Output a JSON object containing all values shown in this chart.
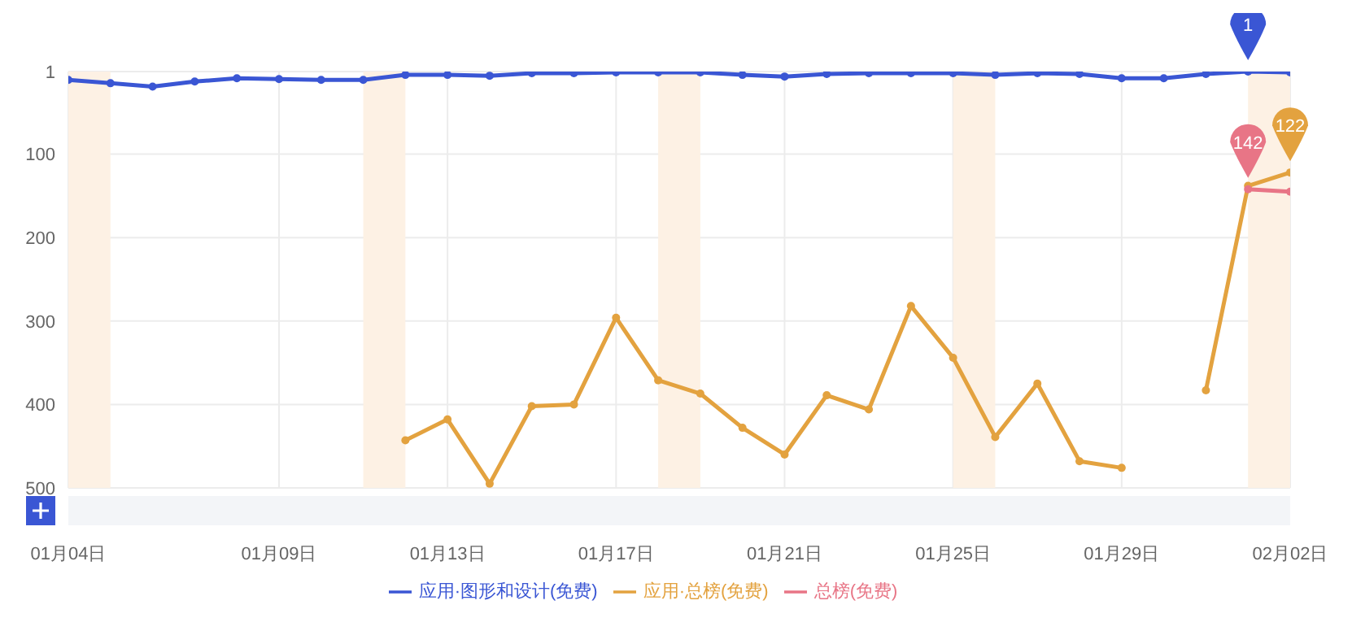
{
  "chart_data": {
    "type": "line",
    "x": [
      "--01-04",
      "--01-05",
      "--01-06",
      "--01-07",
      "--01-08",
      "--01-09",
      "--01-10",
      "--01-11",
      "--01-12",
      "--01-13",
      "--01-14",
      "--01-15",
      "--01-16",
      "--01-17",
      "--01-18",
      "--01-19",
      "--01-20",
      "--01-21",
      "--01-22",
      "--01-23",
      "--01-24",
      "--01-25",
      "--01-26",
      "--01-27",
      "--01-28",
      "--01-29",
      "--01-30",
      "--01-31",
      "--02-01",
      "--02-02"
    ],
    "series": [
      {
        "name": "应用·图形和设计(免费)",
        "color": "#3a56d4",
        "values": [
          11,
          15,
          19,
          13,
          9,
          10,
          11,
          11,
          5,
          5,
          6,
          3,
          3,
          2,
          2,
          2,
          5,
          7,
          4,
          3,
          3,
          3,
          5,
          3,
          4,
          9,
          9,
          4,
          1,
          2
        ],
        "value_labels": [
          null,
          null,
          null,
          null,
          null,
          null,
          null,
          null,
          null,
          null,
          null,
          null,
          null,
          null,
          null,
          null,
          null,
          null,
          null,
          null,
          null,
          null,
          null,
          null,
          null,
          null,
          null,
          null,
          "1",
          null
        ]
      },
      {
        "name": "应用·总榜(免费)",
        "color": "#e3a23f",
        "values": [
          null,
          null,
          null,
          null,
          null,
          null,
          null,
          null,
          443,
          418,
          495,
          402,
          400,
          296,
          371,
          387,
          428,
          460,
          389,
          406,
          282,
          344,
          439,
          375,
          468,
          476,
          null,
          383,
          138,
          122
        ],
        "value_labels": [
          null,
          null,
          null,
          null,
          null,
          null,
          null,
          null,
          null,
          null,
          null,
          null,
          null,
          null,
          null,
          null,
          null,
          null,
          null,
          null,
          null,
          null,
          null,
          null,
          null,
          null,
          null,
          null,
          null,
          "122"
        ]
      },
      {
        "name": "总榜(免费)",
        "color": "#e87586",
        "values": [
          null,
          null,
          null,
          null,
          null,
          null,
          null,
          null,
          null,
          null,
          null,
          null,
          null,
          null,
          null,
          null,
          null,
          null,
          null,
          null,
          null,
          null,
          null,
          null,
          null,
          null,
          null,
          null,
          142,
          145
        ],
        "value_labels": [
          null,
          null,
          null,
          null,
          null,
          null,
          null,
          null,
          null,
          null,
          null,
          null,
          null,
          null,
          null,
          null,
          null,
          null,
          null,
          null,
          null,
          null,
          null,
          null,
          null,
          null,
          null,
          null,
          "142",
          null
        ]
      }
    ],
    "xlim": [
      "--01-04",
      "--02-02"
    ],
    "xticks": [
      {
        "value": "--01-04",
        "label": "01月04日"
      },
      {
        "value": "--01-09",
        "label": "01月09日"
      },
      {
        "value": "--01-13",
        "label": "01月13日"
      },
      {
        "value": "--01-17",
        "label": "01月17日"
      },
      {
        "value": "--01-21",
        "label": "01月21日"
      },
      {
        "value": "--01-25",
        "label": "01月25日"
      },
      {
        "value": "--01-29",
        "label": "01月29日"
      },
      {
        "value": "--02-02",
        "label": "02月02日"
      }
    ],
    "ylim": [
      500,
      1
    ],
    "yticks": [
      1,
      100,
      200,
      300,
      400,
      500
    ],
    "bands": [
      {
        "axis": "x",
        "from": "--01-04",
        "to": "--01-05",
        "color": "#fdf1e4"
      },
      {
        "axis": "x",
        "from": "--01-11",
        "to": "--01-12",
        "color": "#fdf1e4"
      },
      {
        "axis": "x",
        "from": "--01-18",
        "to": "--01-19",
        "color": "#fdf1e4"
      },
      {
        "axis": "x",
        "from": "--01-25",
        "to": "--01-26",
        "color": "#fdf1e4"
      },
      {
        "axis": "x",
        "from": "--02-01",
        "to": "--02-02",
        "color": "#fdf1e4"
      }
    ],
    "grid": true,
    "legend": "bottom",
    "marker": "circle",
    "line_style": "solid"
  }
}
